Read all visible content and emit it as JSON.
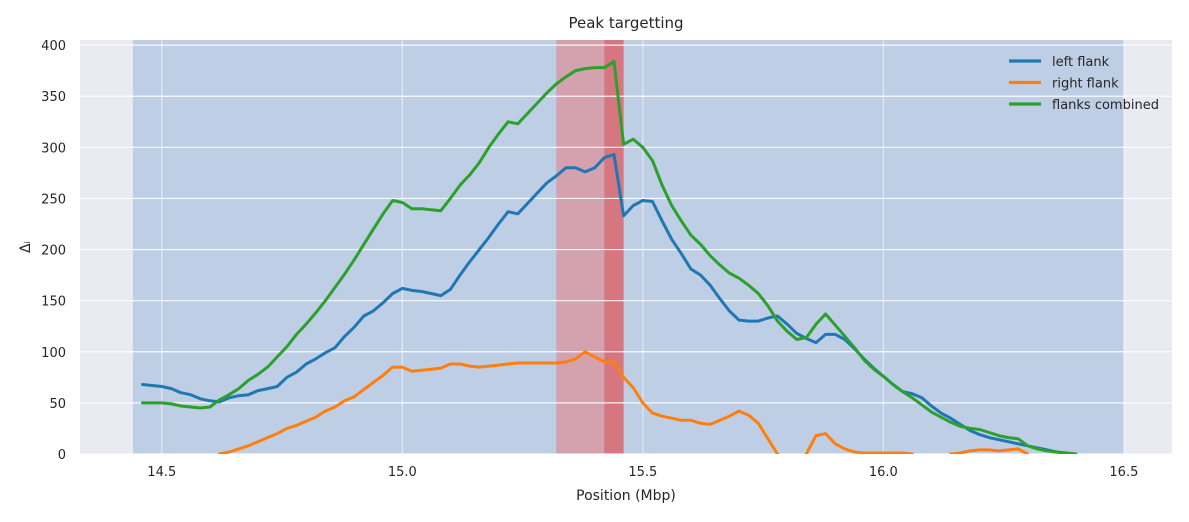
{
  "chart_data": {
    "type": "line",
    "title": "Peak targetting",
    "xlabel": "Position (Mbp)",
    "ylabel": "Δᵢ",
    "xlim": [
      14.33,
      16.6
    ],
    "ylim": [
      0,
      405
    ],
    "xticks": [
      14.5,
      15.0,
      15.5,
      16.0,
      16.5
    ],
    "xtick_labels": [
      "14.5",
      "15.0",
      "15.5",
      "16.0",
      "16.5"
    ],
    "yticks": [
      0,
      50,
      100,
      150,
      200,
      250,
      300,
      350,
      400
    ],
    "ytick_labels": [
      "0",
      "50",
      "100",
      "150",
      "200",
      "250",
      "300",
      "350",
      "400"
    ],
    "grid": true,
    "legend_position": "top-right",
    "shaded_regions": [
      {
        "x0": 14.44,
        "x1": 16.5,
        "color": "#3a7bbf",
        "opacity": 0.25
      },
      {
        "x0": 15.32,
        "x1": 15.46,
        "color": "#ef6a6a",
        "opacity": 0.45
      },
      {
        "x0": 15.42,
        "x1": 15.46,
        "color": "#d9262a",
        "opacity": 0.35
      }
    ],
    "series": [
      {
        "name": "left flank",
        "color": "#1f77b4",
        "x": [
          14.46,
          14.48,
          14.5,
          14.52,
          14.54,
          14.56,
          14.58,
          14.6,
          14.62,
          14.64,
          14.66,
          14.68,
          14.7,
          14.72,
          14.74,
          14.76,
          14.78,
          14.8,
          14.82,
          14.84,
          14.86,
          14.88,
          14.9,
          14.92,
          14.94,
          14.96,
          14.98,
          15.0,
          15.02,
          15.04,
          15.06,
          15.08,
          15.1,
          15.12,
          15.14,
          15.16,
          15.18,
          15.2,
          15.22,
          15.24,
          15.26,
          15.28,
          15.3,
          15.32,
          15.34,
          15.36,
          15.38,
          15.4,
          15.42,
          15.44,
          15.46,
          15.48,
          15.5,
          15.52,
          15.54,
          15.56,
          15.58,
          15.6,
          15.62,
          15.64,
          15.66,
          15.68,
          15.7,
          15.72,
          15.74,
          15.76,
          15.78,
          15.8,
          15.82,
          15.84,
          15.86,
          15.88,
          15.9,
          15.92,
          15.94,
          15.96,
          15.98,
          16.0,
          16.02,
          16.04,
          16.06,
          16.08,
          16.1,
          16.12,
          16.14,
          16.16,
          16.18,
          16.2,
          16.22,
          16.24,
          16.26,
          16.28,
          16.3,
          16.32,
          16.34,
          16.36,
          16.38,
          16.4
        ],
        "y": [
          68,
          67,
          66,
          64,
          60,
          58,
          54,
          52,
          51,
          55,
          57,
          58,
          62,
          64,
          66,
          75,
          80,
          88,
          93,
          99,
          104,
          115,
          124,
          135,
          140,
          148,
          157,
          162,
          160,
          159,
          157,
          155,
          161,
          175,
          188,
          200,
          212,
          225,
          237,
          235,
          245,
          255,
          265,
          272,
          280,
          280,
          276,
          280,
          290,
          293,
          233,
          243,
          248,
          247,
          228,
          210,
          196,
          181,
          175,
          165,
          152,
          140,
          131,
          130,
          130,
          133,
          135,
          127,
          118,
          113,
          109,
          117,
          117,
          112,
          103,
          93,
          84,
          76,
          68,
          61,
          59,
          55,
          47,
          40,
          35,
          29,
          23,
          19,
          16,
          14,
          12,
          10,
          8,
          6,
          4,
          2,
          1,
          0
        ]
      },
      {
        "name": "right flank",
        "color": "#ff7f0e",
        "x": [
          14.62,
          14.64,
          14.66,
          14.68,
          14.7,
          14.72,
          14.74,
          14.76,
          14.78,
          14.8,
          14.82,
          14.84,
          14.86,
          14.88,
          14.9,
          14.92,
          14.94,
          14.96,
          14.98,
          15.0,
          15.02,
          15.04,
          15.06,
          15.08,
          15.1,
          15.12,
          15.14,
          15.16,
          15.18,
          15.2,
          15.22,
          15.24,
          15.26,
          15.28,
          15.3,
          15.32,
          15.34,
          15.36,
          15.38,
          15.4,
          15.42,
          15.44,
          15.46,
          15.48,
          15.5,
          15.52,
          15.54,
          15.56,
          15.58,
          15.6,
          15.62,
          15.64,
          15.66,
          15.68,
          15.7,
          15.72,
          15.74,
          15.76,
          15.78
        ],
        "y": [
          0,
          2,
          5,
          8,
          12,
          16,
          20,
          25,
          28,
          32,
          36,
          42,
          46,
          52,
          56,
          63,
          70,
          77,
          85,
          85,
          81,
          82,
          83,
          84,
          88,
          88,
          86,
          85,
          86,
          87,
          88,
          89,
          89,
          89,
          89,
          89,
          90,
          93,
          100,
          95,
          90,
          90,
          75,
          65,
          50,
          40,
          37,
          35,
          33,
          33,
          30,
          29,
          33,
          37,
          42,
          38,
          30,
          15,
          0
        ]
      },
      {
        "name": "right flank segment 2",
        "color": "#ff7f0e",
        "x": [
          15.84,
          15.86,
          15.88,
          15.9,
          15.92,
          15.94,
          15.96,
          15.98,
          16.0,
          16.02,
          16.04,
          16.06
        ],
        "y": [
          0,
          18,
          20,
          10,
          5,
          2,
          1,
          1,
          1,
          1,
          1,
          0
        ]
      },
      {
        "name": "right flank segment 3",
        "color": "#ff7f0e",
        "x": [
          16.14,
          16.16,
          16.18,
          16.2,
          16.22,
          16.24,
          16.26,
          16.28,
          16.3
        ],
        "y": [
          0,
          1,
          3,
          4,
          4,
          3,
          4,
          5,
          0
        ]
      },
      {
        "name": "flanks combined",
        "color": "#2ca02c",
        "x": [
          14.46,
          14.48,
          14.5,
          14.52,
          14.54,
          14.56,
          14.58,
          14.6,
          14.62,
          14.64,
          14.66,
          14.68,
          14.7,
          14.72,
          14.74,
          14.76,
          14.78,
          14.8,
          14.82,
          14.84,
          14.86,
          14.88,
          14.9,
          14.92,
          14.94,
          14.96,
          14.98,
          15.0,
          15.02,
          15.04,
          15.06,
          15.08,
          15.1,
          15.12,
          15.14,
          15.16,
          15.18,
          15.2,
          15.22,
          15.24,
          15.26,
          15.28,
          15.3,
          15.32,
          15.34,
          15.36,
          15.38,
          15.4,
          15.42,
          15.44,
          15.46,
          15.48,
          15.5,
          15.52,
          15.54,
          15.56,
          15.58,
          15.6,
          15.62,
          15.64,
          15.66,
          15.68,
          15.7,
          15.72,
          15.74,
          15.76,
          15.78,
          15.8,
          15.82,
          15.84,
          15.86,
          15.88,
          15.9,
          15.92,
          15.94,
          15.96,
          15.98,
          16.0,
          16.02,
          16.04,
          16.06,
          16.08,
          16.1,
          16.12,
          16.14,
          16.16,
          16.18,
          16.2,
          16.22,
          16.24,
          16.26,
          16.28,
          16.3,
          16.32,
          16.34,
          16.36,
          16.38,
          16.4
        ],
        "y": [
          50,
          50,
          50,
          49,
          47,
          46,
          45,
          46,
          53,
          58,
          64,
          72,
          78,
          85,
          95,
          105,
          117,
          127,
          138,
          150,
          163,
          176,
          190,
          205,
          220,
          235,
          248,
          246,
          240,
          240,
          239,
          238,
          250,
          263,
          273,
          285,
          300,
          313,
          325,
          323,
          333,
          343,
          353,
          362,
          369,
          375,
          377,
          378,
          378,
          384,
          303,
          308,
          300,
          287,
          263,
          243,
          228,
          214,
          205,
          194,
          185,
          177,
          172,
          165,
          157,
          145,
          130,
          120,
          112,
          114,
          127,
          137,
          126,
          115,
          104,
          92,
          83,
          76,
          68,
          61,
          55,
          48,
          41,
          36,
          31,
          27,
          25,
          24,
          21,
          18,
          16,
          15,
          8,
          5,
          3,
          2,
          1,
          0
        ]
      }
    ],
    "legend": [
      "left flank",
      "right flank",
      "flanks combined"
    ]
  }
}
